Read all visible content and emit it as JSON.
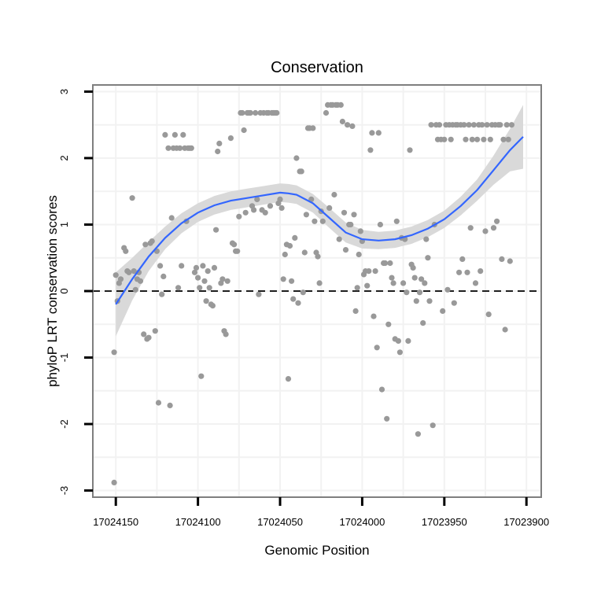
{
  "chart_data": {
    "type": "scatter",
    "title": "Conservation",
    "xlabel": "Genomic Position",
    "ylabel": "phyloP LRT conservation scores",
    "x_reversed": true,
    "xlim": [
      17024164,
      17023891
    ],
    "ylim": [
      -3.1,
      3.1
    ],
    "x_ticks": [
      17024150,
      17024100,
      17024050,
      17024000,
      17023950,
      17023900
    ],
    "y_ticks": [
      -3,
      -2,
      -1,
      0,
      1,
      2,
      3
    ],
    "reference_line": {
      "y": 0,
      "style": "dashed"
    },
    "colors": {
      "points": "#999999",
      "smooth_line": "#3366ff",
      "ribbon": "#d9d9d9",
      "grid": "#f2f2f2",
      "panel_border": "#7f7f7f",
      "reference": "#000000"
    },
    "points": [
      [
        17024151,
        -2.88
      ],
      [
        17024151,
        -0.92
      ],
      [
        17024150,
        0.24
      ],
      [
        17024149,
        -0.15
      ],
      [
        17024148,
        0.12
      ],
      [
        17024147,
        0.18
      ],
      [
        17024145,
        0.65
      ],
      [
        17024144,
        0.6
      ],
      [
        17024143,
        0.3
      ],
      [
        17024142,
        0.28
      ],
      [
        17024140,
        1.4
      ],
      [
        17024139,
        0.3
      ],
      [
        17024138,
        0.02
      ],
      [
        17024137,
        0.18
      ],
      [
        17024136,
        0.28
      ],
      [
        17024135,
        0.15
      ],
      [
        17024133,
        -0.65
      ],
      [
        17024132,
        0.7
      ],
      [
        17024131,
        -0.72
      ],
      [
        17024130,
        -0.7
      ],
      [
        17024129,
        0.72
      ],
      [
        17024128,
        0.75
      ],
      [
        17024126,
        -0.6
      ],
      [
        17024125,
        0.6
      ],
      [
        17024124,
        -1.68
      ],
      [
        17024123,
        0.38
      ],
      [
        17024122,
        -0.05
      ],
      [
        17024121,
        0.22
      ],
      [
        17024120,
        2.35
      ],
      [
        17024118,
        2.15
      ],
      [
        17024117,
        -1.72
      ],
      [
        17024116,
        1.1
      ],
      [
        17024115,
        2.15
      ],
      [
        17024114,
        2.35
      ],
      [
        17024113,
        2.15
      ],
      [
        17024112,
        0.05
      ],
      [
        17024111,
        2.15
      ],
      [
        17024110,
        0.38
      ],
      [
        17024109,
        2.35
      ],
      [
        17024108,
        2.15
      ],
      [
        17024107,
        1.05
      ],
      [
        17024106,
        2.15
      ],
      [
        17024105,
        2.15
      ],
      [
        17024104,
        2.15
      ],
      [
        17024102,
        0.28
      ],
      [
        17024101,
        0.35
      ],
      [
        17024100,
        0.2
      ],
      [
        17024099,
        0.05
      ],
      [
        17024098,
        -1.28
      ],
      [
        17024097,
        0.38
      ],
      [
        17024096,
        0.15
      ],
      [
        17024095,
        -0.15
      ],
      [
        17024094,
        0.3
      ],
      [
        17024093,
        0.05
      ],
      [
        17024092,
        -0.2
      ],
      [
        17024091,
        -0.22
      ],
      [
        17024090,
        0.35
      ],
      [
        17024089,
        0.92
      ],
      [
        17024088,
        2.1
      ],
      [
        17024087,
        2.22
      ],
      [
        17024086,
        0.12
      ],
      [
        17024085,
        0.18
      ],
      [
        17024084,
        -0.6
      ],
      [
        17024083,
        -0.65
      ],
      [
        17024082,
        0.15
      ],
      [
        17024080,
        2.3
      ],
      [
        17024079,
        0.72
      ],
      [
        17024078,
        0.7
      ],
      [
        17024077,
        0.6
      ],
      [
        17024076,
        0.6
      ],
      [
        17024075,
        1.12
      ],
      [
        17024074,
        2.68
      ],
      [
        17024073,
        2.68
      ],
      [
        17024072,
        2.42
      ],
      [
        17024071,
        1.18
      ],
      [
        17024070,
        2.68
      ],
      [
        17024069,
        2.68
      ],
      [
        17024068,
        2.68
      ],
      [
        17024067,
        1.28
      ],
      [
        17024066,
        1.22
      ],
      [
        17024065,
        2.68
      ],
      [
        17024064,
        1.38
      ],
      [
        17024063,
        -0.05
      ],
      [
        17024062,
        2.68
      ],
      [
        17024061,
        1.22
      ],
      [
        17024060,
        2.68
      ],
      [
        17024059,
        1.18
      ],
      [
        17024058,
        2.68
      ],
      [
        17024057,
        2.68
      ],
      [
        17024056,
        1.28
      ],
      [
        17024055,
        2.68
      ],
      [
        17024054,
        2.68
      ],
      [
        17024053,
        2.68
      ],
      [
        17024052,
        2.68
      ],
      [
        17024051,
        1.32
      ],
      [
        17024050,
        1.38
      ],
      [
        17024049,
        1.25
      ],
      [
        17024048,
        0.18
      ],
      [
        17024047,
        0.55
      ],
      [
        17024046,
        0.7
      ],
      [
        17024045,
        -1.32
      ],
      [
        17024044,
        0.68
      ],
      [
        17024043,
        0.15
      ],
      [
        17024042,
        -0.12
      ],
      [
        17024041,
        0.8
      ],
      [
        17024040,
        2.0
      ],
      [
        17024039,
        -0.18
      ],
      [
        17024038,
        1.8
      ],
      [
        17024037,
        1.8
      ],
      [
        17024036,
        -0.02
      ],
      [
        17024035,
        0.58
      ],
      [
        17024034,
        1.15
      ],
      [
        17024033,
        2.45
      ],
      [
        17024032,
        2.45
      ],
      [
        17024031,
        1.38
      ],
      [
        17024030,
        2.45
      ],
      [
        17024029,
        1.05
      ],
      [
        17024028,
        0.58
      ],
      [
        17024027,
        0.52
      ],
      [
        17024026,
        0.12
      ],
      [
        17024025,
        1.2
      ],
      [
        17024024,
        1.05
      ],
      [
        17024022,
        2.68
      ],
      [
        17024021,
        2.8
      ],
      [
        17024020,
        1.25
      ],
      [
        17024019,
        2.8
      ],
      [
        17024018,
        2.8
      ],
      [
        17024017,
        1.45
      ],
      [
        17024016,
        2.8
      ],
      [
        17024015,
        2.8
      ],
      [
        17024014,
        0.78
      ],
      [
        17024013,
        2.8
      ],
      [
        17024012,
        2.55
      ],
      [
        17024011,
        1.18
      ],
      [
        17024010,
        0.62
      ],
      [
        17024009,
        2.5
      ],
      [
        17024008,
        1.0
      ],
      [
        17024007,
        1.0
      ],
      [
        17024006,
        2.48
      ],
      [
        17024005,
        1.15
      ],
      [
        17024004,
        -0.3
      ],
      [
        17024003,
        0.05
      ],
      [
        17024002,
        0.55
      ],
      [
        17024001,
        0.9
      ],
      [
        17024000,
        0.75
      ],
      [
        17023999,
        0.25
      ],
      [
        17023998,
        0.3
      ],
      [
        17023997,
        0.08
      ],
      [
        17023996,
        0.3
      ],
      [
        17023995,
        2.12
      ],
      [
        17023994,
        2.38
      ],
      [
        17023993,
        -0.38
      ],
      [
        17023992,
        0.3
      ],
      [
        17023991,
        -0.85
      ],
      [
        17023990,
        2.38
      ],
      [
        17023989,
        1.0
      ],
      [
        17023988,
        -1.48
      ],
      [
        17023987,
        0.42
      ],
      [
        17023986,
        0.42
      ],
      [
        17023985,
        -1.92
      ],
      [
        17023984,
        -0.5
      ],
      [
        17023983,
        0.42
      ],
      [
        17023982,
        0.2
      ],
      [
        17023981,
        0.12
      ],
      [
        17023980,
        -0.72
      ],
      [
        17023979,
        1.05
      ],
      [
        17023978,
        -0.75
      ],
      [
        17023977,
        -0.92
      ],
      [
        17023976,
        0.8
      ],
      [
        17023975,
        0.12
      ],
      [
        17023974,
        0.78
      ],
      [
        17023973,
        -0.02
      ],
      [
        17023972,
        -0.75
      ],
      [
        17023971,
        2.12
      ],
      [
        17023970,
        0.4
      ],
      [
        17023969,
        0.35
      ],
      [
        17023968,
        0.2
      ],
      [
        17023967,
        -0.15
      ],
      [
        17023966,
        -2.15
      ],
      [
        17023965,
        -0.02
      ],
      [
        17023964,
        0.18
      ],
      [
        17023963,
        -0.48
      ],
      [
        17023962,
        0.12
      ],
      [
        17023961,
        0.78
      ],
      [
        17023960,
        0.5
      ],
      [
        17023959,
        -0.15
      ],
      [
        17023958,
        2.5
      ],
      [
        17023957,
        -2.02
      ],
      [
        17023956,
        1.0
      ],
      [
        17023955,
        2.5
      ],
      [
        17023954,
        2.28
      ],
      [
        17023953,
        2.5
      ],
      [
        17023952,
        2.28
      ],
      [
        17023951,
        -0.3
      ],
      [
        17023950,
        2.28
      ],
      [
        17023949,
        2.5
      ],
      [
        17023948,
        0.02
      ],
      [
        17023947,
        2.5
      ],
      [
        17023946,
        2.28
      ],
      [
        17023945,
        2.5
      ],
      [
        17023944,
        -0.18
      ],
      [
        17023943,
        2.5
      ],
      [
        17023942,
        2.5
      ],
      [
        17023941,
        0.28
      ],
      [
        17023940,
        2.5
      ],
      [
        17023939,
        0.48
      ],
      [
        17023938,
        2.5
      ],
      [
        17023937,
        2.28
      ],
      [
        17023936,
        0.28
      ],
      [
        17023935,
        2.5
      ],
      [
        17023934,
        0.95
      ],
      [
        17023933,
        2.28
      ],
      [
        17023932,
        2.5
      ],
      [
        17023931,
        0.12
      ],
      [
        17023930,
        2.28
      ],
      [
        17023929,
        2.5
      ],
      [
        17023928,
        0.3
      ],
      [
        17023927,
        2.5
      ],
      [
        17023926,
        2.28
      ],
      [
        17023925,
        0.9
      ],
      [
        17023924,
        2.5
      ],
      [
        17023923,
        -0.35
      ],
      [
        17023922,
        2.28
      ],
      [
        17023921,
        2.5
      ],
      [
        17023920,
        0.95
      ],
      [
        17023919,
        2.5
      ],
      [
        17023918,
        1.05
      ],
      [
        17023917,
        2.5
      ],
      [
        17023916,
        2.5
      ],
      [
        17023915,
        0.48
      ],
      [
        17023914,
        2.28
      ],
      [
        17023913,
        -0.58
      ],
      [
        17023912,
        2.5
      ],
      [
        17023911,
        2.28
      ],
      [
        17023910,
        0.45
      ],
      [
        17023909,
        2.5
      ]
    ],
    "smooth": [
      [
        17024150,
        -0.2
      ],
      [
        17024140,
        0.18
      ],
      [
        17024130,
        0.52
      ],
      [
        17024120,
        0.8
      ],
      [
        17024110,
        1.02
      ],
      [
        17024100,
        1.18
      ],
      [
        17024090,
        1.29
      ],
      [
        17024080,
        1.36
      ],
      [
        17024070,
        1.4
      ],
      [
        17024060,
        1.44
      ],
      [
        17024050,
        1.48
      ],
      [
        17024045,
        1.47
      ],
      [
        17024040,
        1.45
      ],
      [
        17024030,
        1.32
      ],
      [
        17024020,
        1.1
      ],
      [
        17024010,
        0.88
      ],
      [
        17024000,
        0.78
      ],
      [
        17023990,
        0.76
      ],
      [
        17023980,
        0.78
      ],
      [
        17023970,
        0.84
      ],
      [
        17023960,
        0.94
      ],
      [
        17023950,
        1.08
      ],
      [
        17023940,
        1.28
      ],
      [
        17023930,
        1.52
      ],
      [
        17023920,
        1.82
      ],
      [
        17023910,
        2.12
      ],
      [
        17023902,
        2.32
      ]
    ],
    "ribbon_halfwidth": [
      0.48,
      0.32,
      0.22,
      0.17,
      0.15,
      0.14,
      0.14,
      0.14,
      0.14,
      0.14,
      0.14,
      0.14,
      0.14,
      0.14,
      0.15,
      0.15,
      0.14,
      0.13,
      0.13,
      0.13,
      0.13,
      0.13,
      0.14,
      0.16,
      0.22,
      0.32,
      0.48
    ]
  }
}
